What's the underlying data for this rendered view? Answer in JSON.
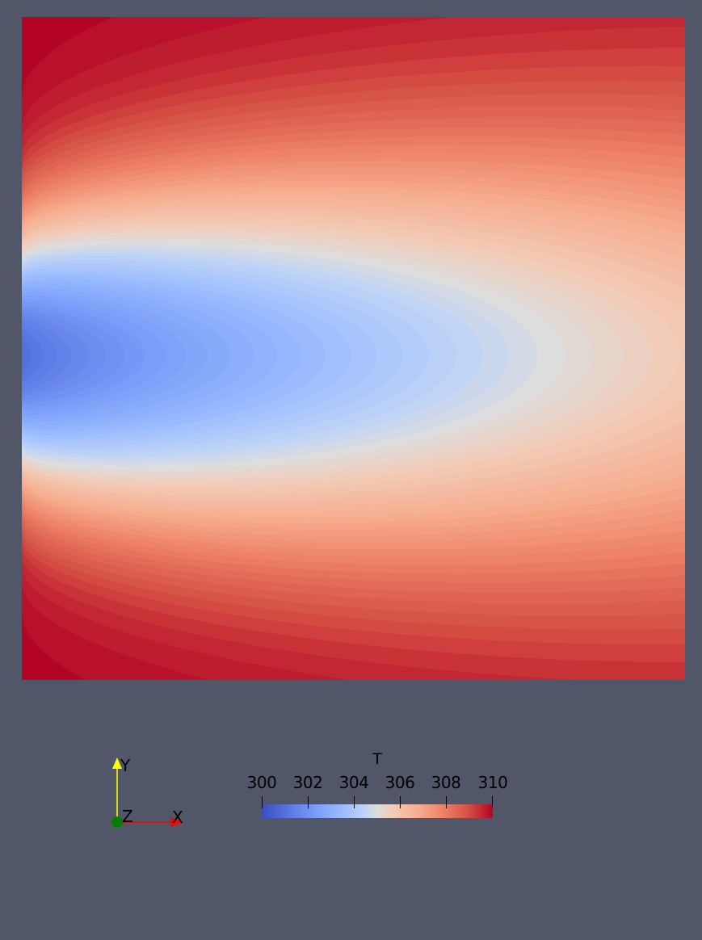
{
  "render_view": {
    "background": "#525669",
    "field": {
      "variable": "T",
      "range": [
        300,
        310
      ],
      "colormap": "cool-to-warm",
      "colors": {
        "cold": "#3b4cc0",
        "neutral": "#dddddd",
        "hot": "#b40426"
      }
    }
  },
  "orientation_axes": {
    "y_label": "Y",
    "z_label": "Z",
    "x_label": "X",
    "colors": {
      "x": "#ff0000",
      "y": "#ffff00",
      "z": "#008000"
    }
  },
  "legend": {
    "title": "T",
    "ticks": [
      {
        "value": 300,
        "label": "300"
      },
      {
        "value": 302,
        "label": "302"
      },
      {
        "value": 304,
        "label": "304"
      },
      {
        "value": 306,
        "label": "306"
      },
      {
        "value": 308,
        "label": "308"
      },
      {
        "value": 310,
        "label": "310"
      }
    ]
  }
}
